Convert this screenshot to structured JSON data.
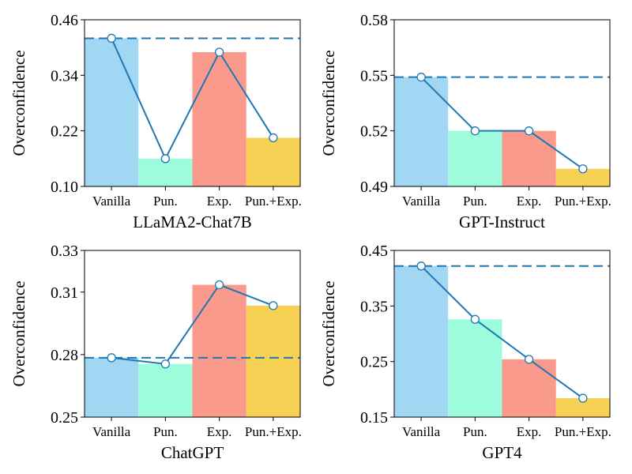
{
  "style": {
    "bar_colors": [
      "#a1d7f2",
      "#9dfcdb",
      "#fa9a8c",
      "#f6d154"
    ],
    "line_color": "#1f77b4"
  },
  "chart_data": [
    {
      "type": "bar",
      "title": "LLaMA2-Chat7B",
      "xlabel": "LLaMA2-Chat7B",
      "ylabel": "Overconfidence",
      "categories": [
        "Vanilla",
        "Pun.",
        "Exp.",
        "Pun.+Exp."
      ],
      "values": [
        0.42,
        0.16,
        0.39,
        0.205
      ],
      "baseline": 0.42,
      "ylim": [
        0.1,
        0.46
      ],
      "yticks": [
        0.1,
        0.22,
        0.34,
        0.46
      ],
      "ytick_labels": [
        "0.10",
        "0.22",
        "0.34",
        "0.46"
      ]
    },
    {
      "type": "bar",
      "title": "GPT-Instruct",
      "xlabel": "GPT-Instruct",
      "ylabel": "Overconfidence",
      "categories": [
        "Vanilla",
        "Pun.",
        "Exp.",
        "Pun.+Exp."
      ],
      "values": [
        0.549,
        0.52,
        0.52,
        0.4995
      ],
      "baseline": 0.549,
      "ylim": [
        0.49,
        0.58
      ],
      "yticks": [
        0.49,
        0.52,
        0.55,
        0.58
      ],
      "ytick_labels": [
        "0.49",
        "0.52",
        "0.55",
        "0.58"
      ]
    },
    {
      "type": "bar",
      "title": "ChatGPT",
      "xlabel": "ChatGPT",
      "ylabel": "Overconfidence",
      "categories": [
        "Vanilla",
        "Pun.",
        "Exp.",
        "Pun.+Exp."
      ],
      "values": [
        0.2785,
        0.2755,
        0.3135,
        0.3035
      ],
      "baseline": 0.2785,
      "ylim": [
        0.25,
        0.33
      ],
      "yticks": [
        0.25,
        0.28,
        0.31,
        0.33
      ],
      "ytick_labels": [
        "0.25",
        "0.28",
        "0.31",
        "0.33"
      ]
    },
    {
      "type": "bar",
      "title": "GPT4",
      "xlabel": "GPT4",
      "ylabel": "Overconfidence",
      "categories": [
        "Vanilla",
        "Pun.",
        "Exp.",
        "Pun.+Exp."
      ],
      "values": [
        0.422,
        0.326,
        0.254,
        0.184
      ],
      "baseline": 0.422,
      "ylim": [
        0.15,
        0.45
      ],
      "yticks": [
        0.15,
        0.25,
        0.35,
        0.45
      ],
      "ytick_labels": [
        "0.15",
        "0.25",
        "0.35",
        "0.45"
      ]
    }
  ]
}
